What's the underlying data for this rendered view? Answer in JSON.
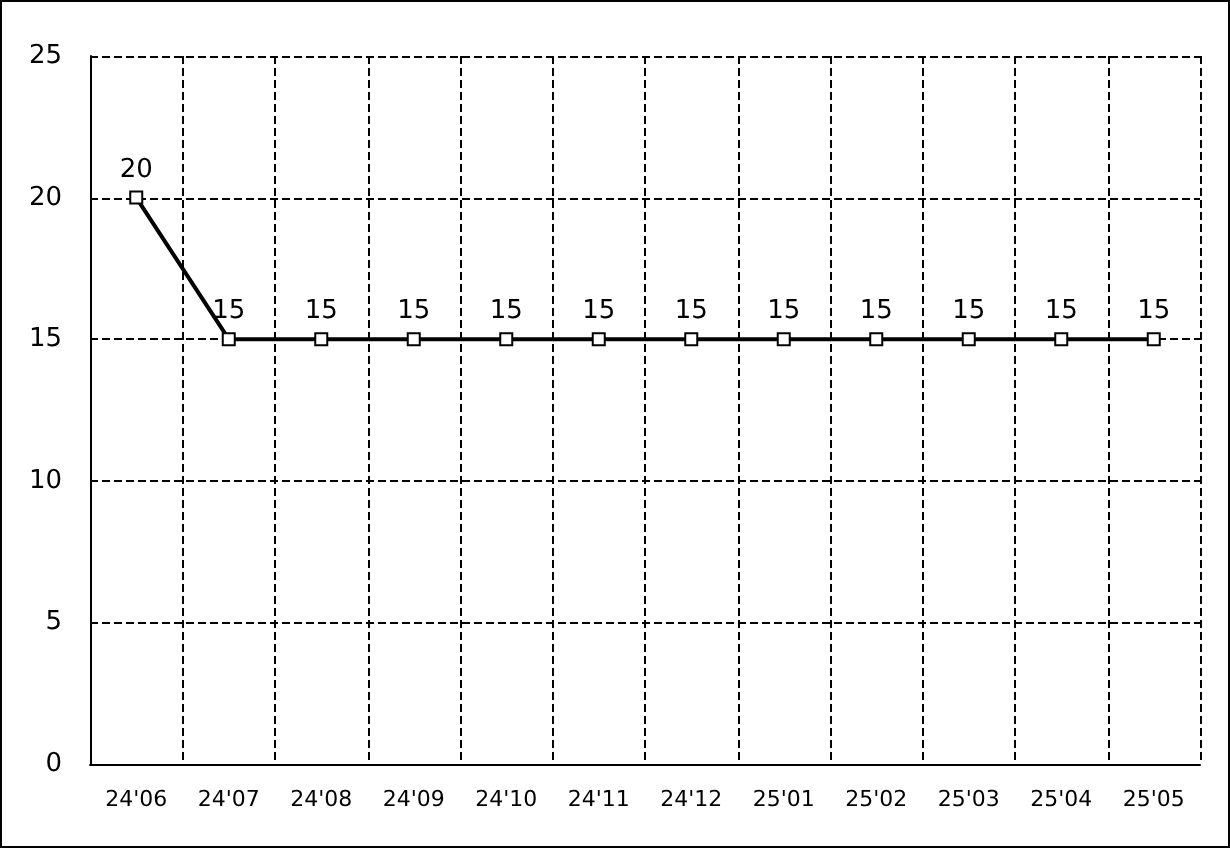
{
  "chart_data": {
    "type": "line",
    "categories": [
      "24'06",
      "24'07",
      "24'08",
      "24'09",
      "24'10",
      "24'11",
      "24'12",
      "25'01",
      "25'02",
      "25'03",
      "25'04",
      "25'05"
    ],
    "series": [
      {
        "color": "#000000",
        "values": [
          20,
          15,
          15,
          15,
          15,
          15,
          15,
          15,
          15,
          15,
          15,
          15
        ]
      }
    ],
    "ylim": [
      0,
      25
    ],
    "yticks": [
      0,
      5,
      10,
      15,
      20,
      25
    ],
    "grid": true,
    "marker": "square",
    "line_style": "solid",
    "data_labels": true
  }
}
